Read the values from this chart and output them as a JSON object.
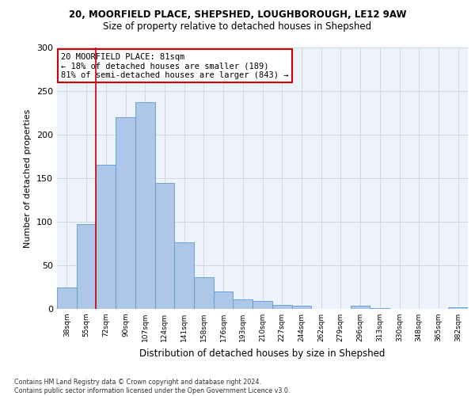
{
  "title1": "20, MOORFIELD PLACE, SHEPSHED, LOUGHBOROUGH, LE12 9AW",
  "title2": "Size of property relative to detached houses in Shepshed",
  "xlabel": "Distribution of detached houses by size in Shepshed",
  "ylabel": "Number of detached properties",
  "bar_labels": [
    "38sqm",
    "55sqm",
    "72sqm",
    "90sqm",
    "107sqm",
    "124sqm",
    "141sqm",
    "158sqm",
    "176sqm",
    "193sqm",
    "210sqm",
    "227sqm",
    "244sqm",
    "262sqm",
    "279sqm",
    "296sqm",
    "313sqm",
    "330sqm",
    "348sqm",
    "365sqm",
    "382sqm"
  ],
  "bar_values": [
    25,
    97,
    165,
    220,
    237,
    145,
    76,
    36,
    20,
    11,
    9,
    5,
    4,
    0,
    0,
    4,
    1,
    0,
    0,
    0,
    2
  ],
  "bar_color": "#aec6e8",
  "bar_edge_color": "#5b9bd5",
  "grid_color": "#d0d8e8",
  "background_color": "#eef2fb",
  "vline_color": "#cc0000",
  "vline_x": 1.5,
  "annotation_text": "20 MOORFIELD PLACE: 81sqm\n← 18% of detached houses are smaller (189)\n81% of semi-detached houses are larger (843) →",
  "annotation_box_color": "#ffffff",
  "annotation_box_edge": "#cc0000",
  "footer_text": "Contains HM Land Registry data © Crown copyright and database right 2024.\nContains public sector information licensed under the Open Government Licence v3.0.",
  "ylim": [
    0,
    300
  ],
  "yticks": [
    0,
    50,
    100,
    150,
    200,
    250,
    300
  ]
}
